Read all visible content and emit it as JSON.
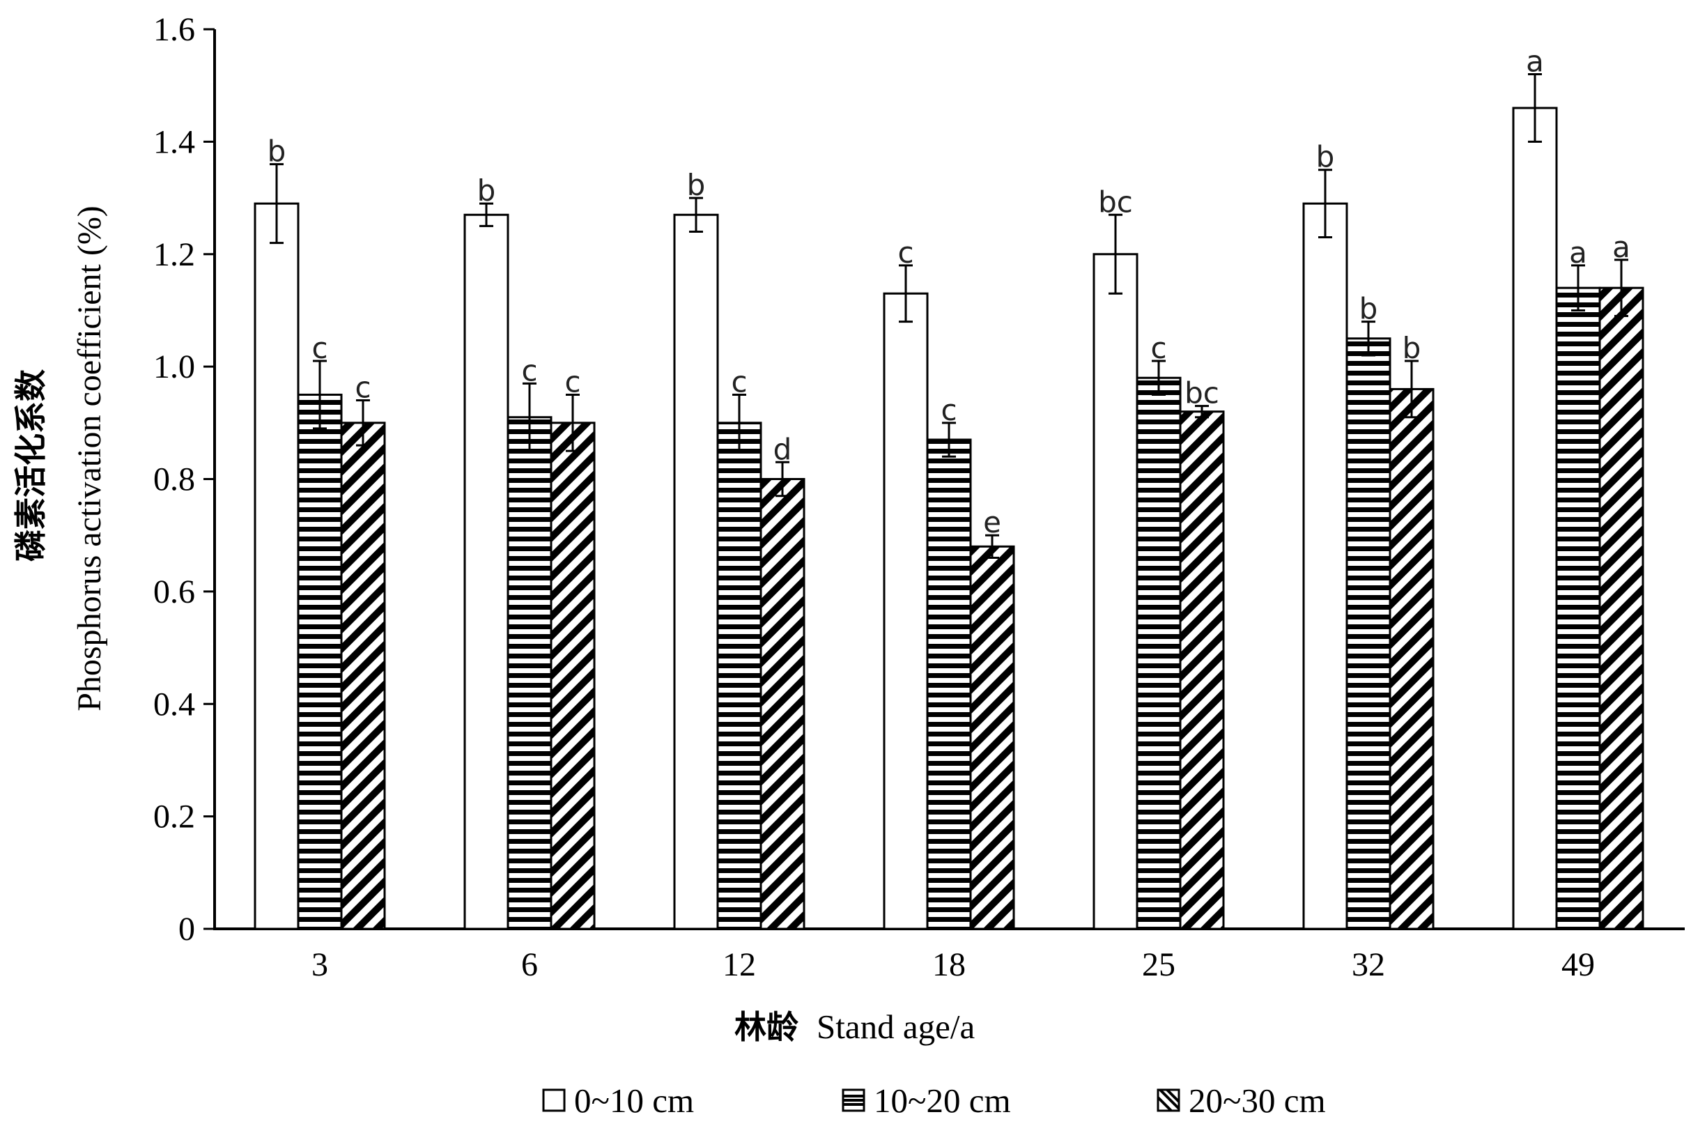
{
  "chart_data": {
    "type": "bar",
    "xlabel_cn": "林龄",
    "xlabel_en": "Stand age/a",
    "ylabel_cn": "磷素活化系数",
    "ylabel_en": "Phosphorus activation coefficient (%)",
    "ylim": [
      0,
      1.6
    ],
    "yticks": [
      "0",
      "0.2",
      "0.4",
      "0.6",
      "0.8",
      "1.0",
      "1.2",
      "1.4",
      "1.6"
    ],
    "categories": [
      "3",
      "6",
      "12",
      "18",
      "25",
      "32",
      "49"
    ],
    "legend_position": "bottom",
    "grid": false,
    "series": [
      {
        "name": "0~10 cm",
        "pattern": "blank",
        "values": [
          1.29,
          1.27,
          1.27,
          1.13,
          1.2,
          1.29,
          1.46
        ],
        "errors": [
          0.07,
          0.02,
          0.03,
          0.05,
          0.07,
          0.06,
          0.06
        ],
        "letters": [
          "b",
          "b",
          "b",
          "c",
          "bc",
          "b",
          "a"
        ]
      },
      {
        "name": "10~20 cm",
        "pattern": "horizontal",
        "values": [
          0.95,
          0.91,
          0.9,
          0.87,
          0.98,
          1.05,
          1.14
        ],
        "errors": [
          0.06,
          0.06,
          0.05,
          0.03,
          0.03,
          0.03,
          0.04
        ],
        "letters": [
          "c",
          "c",
          "c",
          "c",
          "c",
          "b",
          "a"
        ]
      },
      {
        "name": "20~30 cm",
        "pattern": "diagonal",
        "values": [
          0.9,
          0.9,
          0.8,
          0.68,
          0.92,
          0.96,
          1.14
        ],
        "errors": [
          0.04,
          0.05,
          0.03,
          0.02,
          0.01,
          0.05,
          0.05
        ],
        "letters": [
          "c",
          "c",
          "d",
          "e",
          "bc",
          "b",
          "a"
        ]
      }
    ]
  }
}
